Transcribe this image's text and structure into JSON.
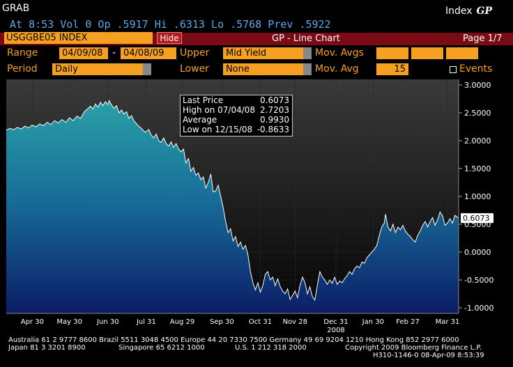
{
  "header": {
    "function_code": "GRAB",
    "index_label": "Index",
    "gp_label": "GP",
    "quote_line": "At  8:53 Vol 0 Op .5917   Hi .6313   Lo .5768   Prev .5922"
  },
  "toolbar": {
    "ticker": "USGGBE05 INDEX",
    "hide_label": "Hide",
    "title": "GP - Line Chart",
    "page": "Page 1/7"
  },
  "controls": {
    "range_label": "Range",
    "range_start": "04/09/08",
    "range_sep": "-",
    "range_end": "04/08/09",
    "upper_label": "Upper",
    "upper_value": "Mid Yield",
    "mov_avgs_label": "Mov. Avgs",
    "period_label": "Period",
    "period_value": "Daily",
    "lower_label": "Lower",
    "lower_value": "None",
    "mov_avg_label": "Mov. Avg",
    "mov_avg_value": "15",
    "events_label": "Events"
  },
  "infobox": {
    "rows": [
      {
        "k": "Last Price",
        "v": "0.6073"
      },
      {
        "k": "High on 07/04/08",
        "v": "2.7203"
      },
      {
        "k": "Average",
        "v": "0.9930"
      },
      {
        "k": "Low on 12/15/08",
        "v": "-0.8633"
      }
    ]
  },
  "chart_data": {
    "type": "area",
    "ylim": [
      -1.1,
      3.1
    ],
    "yticks": [
      "3.0000",
      "2.5000",
      "2.0000",
      "1.5000",
      "1.0000",
      "0.5000",
      "0.0000",
      "-0.5000",
      "-1.0000"
    ],
    "ytick_values": [
      3.0,
      2.5,
      2.0,
      1.5,
      1.0,
      0.5,
      0.0,
      -0.5,
      -1.0
    ],
    "xlim": [
      0,
      365
    ],
    "xticks": [
      {
        "label": "Apr 30",
        "day": 21
      },
      {
        "label": "May 30",
        "day": 51
      },
      {
        "label": "Jun 30",
        "day": 82
      },
      {
        "label": "Jul 31",
        "day": 113
      },
      {
        "label": "Aug 29",
        "day": 142
      },
      {
        "label": "Sep 30",
        "day": 174
      },
      {
        "label": "Oct 31",
        "day": 205
      },
      {
        "label": "Nov 28",
        "day": 233
      },
      {
        "label": "Dec 31",
        "day": 266
      },
      {
        "label": "Jan 30",
        "day": 296
      },
      {
        "label": "Feb 27",
        "day": 324
      },
      {
        "label": "Mar 31",
        "day": 356
      }
    ],
    "year_label": {
      "label": "2008",
      "day": 266
    },
    "last_value_label": "0.6073",
    "series": [
      {
        "values": [
          [
            0,
            2.19
          ],
          [
            3,
            2.22
          ],
          [
            6,
            2.2
          ],
          [
            9,
            2.24
          ],
          [
            12,
            2.21
          ],
          [
            15,
            2.26
          ],
          [
            18,
            2.23
          ],
          [
            21,
            2.28
          ],
          [
            24,
            2.25
          ],
          [
            27,
            2.3
          ],
          [
            30,
            2.27
          ],
          [
            33,
            2.33
          ],
          [
            36,
            2.29
          ],
          [
            39,
            2.36
          ],
          [
            42,
            2.32
          ],
          [
            45,
            2.38
          ],
          [
            48,
            2.33
          ],
          [
            51,
            2.41
          ],
          [
            54,
            2.36
          ],
          [
            57,
            2.44
          ],
          [
            60,
            2.4
          ],
          [
            63,
            2.52
          ],
          [
            66,
            2.58
          ],
          [
            68,
            2.62
          ],
          [
            70,
            2.57
          ],
          [
            72,
            2.66
          ],
          [
            74,
            2.6
          ],
          [
            76,
            2.69
          ],
          [
            78,
            2.63
          ],
          [
            80,
            2.7
          ],
          [
            82,
            2.65
          ],
          [
            83,
            2.72
          ],
          [
            85,
            2.64
          ],
          [
            87,
            2.58
          ],
          [
            89,
            2.63
          ],
          [
            91,
            2.5
          ],
          [
            93,
            2.55
          ],
          [
            95,
            2.48
          ],
          [
            97,
            2.52
          ],
          [
            99,
            2.4
          ],
          [
            101,
            2.45
          ],
          [
            103,
            2.36
          ],
          [
            106,
            2.28
          ],
          [
            109,
            2.22
          ],
          [
            112,
            2.15
          ],
          [
            115,
            2.2
          ],
          [
            117,
            2.1
          ],
          [
            119,
            2.05
          ],
          [
            121,
            2.12
          ],
          [
            123,
            2.0
          ],
          [
            125,
            1.97
          ],
          [
            127,
            2.05
          ],
          [
            129,
            1.95
          ],
          [
            131,
            1.9
          ],
          [
            133,
            1.98
          ],
          [
            135,
            1.88
          ],
          [
            137,
            1.95
          ],
          [
            139,
            1.85
          ],
          [
            141,
            1.8
          ],
          [
            143,
            1.85
          ],
          [
            145,
            1.6
          ],
          [
            147,
            1.68
          ],
          [
            149,
            1.45
          ],
          [
            151,
            1.52
          ],
          [
            153,
            1.38
          ],
          [
            155,
            1.42
          ],
          [
            157,
            1.3
          ],
          [
            159,
            1.35
          ],
          [
            161,
            1.15
          ],
          [
            163,
            1.25
          ],
          [
            165,
            1.4
          ],
          [
            167,
            1.08
          ],
          [
            169,
            1.1
          ],
          [
            171,
            1.2
          ],
          [
            173,
            1.0
          ],
          [
            175,
            0.8
          ],
          [
            177,
            0.55
          ],
          [
            179,
            0.35
          ],
          [
            181,
            0.42
          ],
          [
            183,
            0.2
          ],
          [
            185,
            0.28
          ],
          [
            187,
            0.1
          ],
          [
            189,
            0.18
          ],
          [
            191,
            0.05
          ],
          [
            193,
            0.12
          ],
          [
            195,
            -0.05
          ],
          [
            197,
            -0.35
          ],
          [
            199,
            -0.55
          ],
          [
            201,
            -0.68
          ],
          [
            203,
            -0.55
          ],
          [
            205,
            -0.72
          ],
          [
            207,
            -0.6
          ],
          [
            209,
            -0.4
          ],
          [
            211,
            -0.35
          ],
          [
            213,
            -0.5
          ],
          [
            215,
            -0.45
          ],
          [
            217,
            -0.6
          ],
          [
            219,
            -0.48
          ],
          [
            221,
            -0.62
          ],
          [
            223,
            -0.7
          ],
          [
            225,
            -0.75
          ],
          [
            227,
            -0.66
          ],
          [
            229,
            -0.85
          ],
          [
            231,
            -0.78
          ],
          [
            233,
            -0.7
          ],
          [
            235,
            -0.82
          ],
          [
            237,
            -0.6
          ],
          [
            239,
            -0.45
          ],
          [
            241,
            -0.55
          ],
          [
            243,
            -0.75
          ],
          [
            245,
            -0.62
          ],
          [
            247,
            -0.8
          ],
          [
            249,
            -0.86
          ],
          [
            251,
            -0.6
          ],
          [
            253,
            -0.35
          ],
          [
            255,
            -0.45
          ],
          [
            257,
            -0.5
          ],
          [
            259,
            -0.58
          ],
          [
            261,
            -0.5
          ],
          [
            263,
            -0.56
          ],
          [
            265,
            -0.45
          ],
          [
            267,
            -0.58
          ],
          [
            269,
            -0.52
          ],
          [
            271,
            -0.55
          ],
          [
            273,
            -0.48
          ],
          [
            275,
            -0.42
          ],
          [
            277,
            -0.35
          ],
          [
            279,
            -0.4
          ],
          [
            281,
            -0.3
          ],
          [
            283,
            -0.25
          ],
          [
            285,
            -0.28
          ],
          [
            287,
            -0.18
          ],
          [
            289,
            -0.2
          ],
          [
            291,
            -0.1
          ],
          [
            293,
            -0.05
          ],
          [
            295,
            0.0
          ],
          [
            297,
            0.05
          ],
          [
            299,
            0.12
          ],
          [
            301,
            0.3
          ],
          [
            303,
            0.45
          ],
          [
            305,
            0.52
          ],
          [
            306,
            0.68
          ],
          [
            308,
            0.45
          ],
          [
            310,
            0.38
          ],
          [
            312,
            0.5
          ],
          [
            314,
            0.35
          ],
          [
            316,
            0.45
          ],
          [
            318,
            0.4
          ],
          [
            320,
            0.48
          ],
          [
            322,
            0.38
          ],
          [
            324,
            0.32
          ],
          [
            326,
            0.28
          ],
          [
            328,
            0.22
          ],
          [
            330,
            0.18
          ],
          [
            332,
            0.3
          ],
          [
            334,
            0.38
          ],
          [
            336,
            0.48
          ],
          [
            338,
            0.55
          ],
          [
            340,
            0.45
          ],
          [
            342,
            0.55
          ],
          [
            344,
            0.62
          ],
          [
            346,
            0.48
          ],
          [
            348,
            0.58
          ],
          [
            350,
            0.72
          ],
          [
            352,
            0.65
          ],
          [
            354,
            0.48
          ],
          [
            356,
            0.52
          ],
          [
            358,
            0.6
          ],
          [
            360,
            0.52
          ],
          [
            362,
            0.66
          ],
          [
            365,
            0.61
          ]
        ]
      }
    ]
  },
  "footer": {
    "line1": "Australia 61 2 9777 8600 Brazil 5511 3048 4500 Europe 44 20 7330 7500 Germany 49 69 9204 1210 Hong Kong 852 2977 6000",
    "line2_left": "Japan 81 3 3201 8900",
    "line2_mid1": "Singapore 65 6212 1000",
    "line2_mid2": "U.S. 1 212 318 2000",
    "line2_right": "Copyright 2009 Bloomberg Finance L.P.",
    "line3_right": "H310-1146-0 08-Apr-09  8:53:39"
  },
  "colors": {
    "amber": "#f5a020",
    "red_bar": "#7a0b14",
    "quote_blue": "#5aa8e8",
    "area_top": "#2a9aa8",
    "area_bottom": "#0a1a60"
  }
}
